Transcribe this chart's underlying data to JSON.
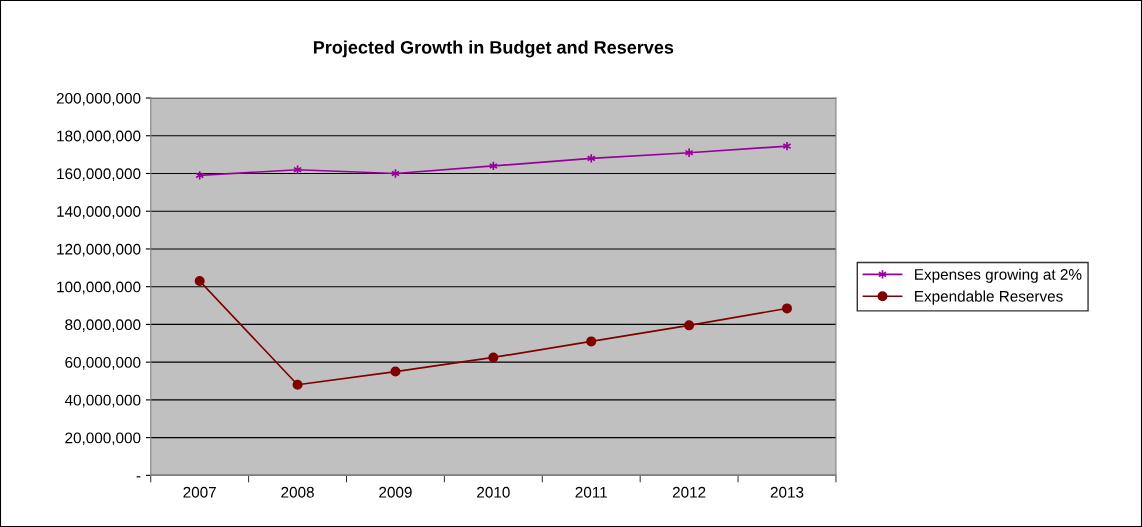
{
  "chart_data": {
    "type": "line",
    "title": "Projected Growth in Budget and Reserves",
    "categories": [
      "2007",
      "2008",
      "2009",
      "2010",
      "2011",
      "2012",
      "2013"
    ],
    "series": [
      {
        "name": "Expenses growing at 2%",
        "color": "#990099",
        "marker": "cross",
        "values": [
          159000000,
          162000000,
          160000000,
          164000000,
          168000000,
          171000000,
          174500000
        ]
      },
      {
        "name": "Expendable Reserves",
        "color": "#800000",
        "marker": "circle",
        "values": [
          103000000,
          48000000,
          55000000,
          62500000,
          71000000,
          79500000,
          88500000
        ]
      }
    ],
    "ylim": [
      0,
      200000000
    ],
    "yticks": [
      {
        "value": 0,
        "label": "-"
      },
      {
        "value": 20000000,
        "label": "20,000,000"
      },
      {
        "value": 40000000,
        "label": "40,000,000"
      },
      {
        "value": 60000000,
        "label": "60,000,000"
      },
      {
        "value": 80000000,
        "label": "80,000,000"
      },
      {
        "value": 100000000,
        "label": "100,000,000"
      },
      {
        "value": 120000000,
        "label": "120,000,000"
      },
      {
        "value": 140000000,
        "label": "140,000,000"
      },
      {
        "value": 160000000,
        "label": "160,000,000"
      },
      {
        "value": 180000000,
        "label": "180,000,000"
      },
      {
        "value": 200000000,
        "label": "200,000,000"
      }
    ],
    "grid": "y",
    "legend": "right",
    "line_style": "solid"
  }
}
